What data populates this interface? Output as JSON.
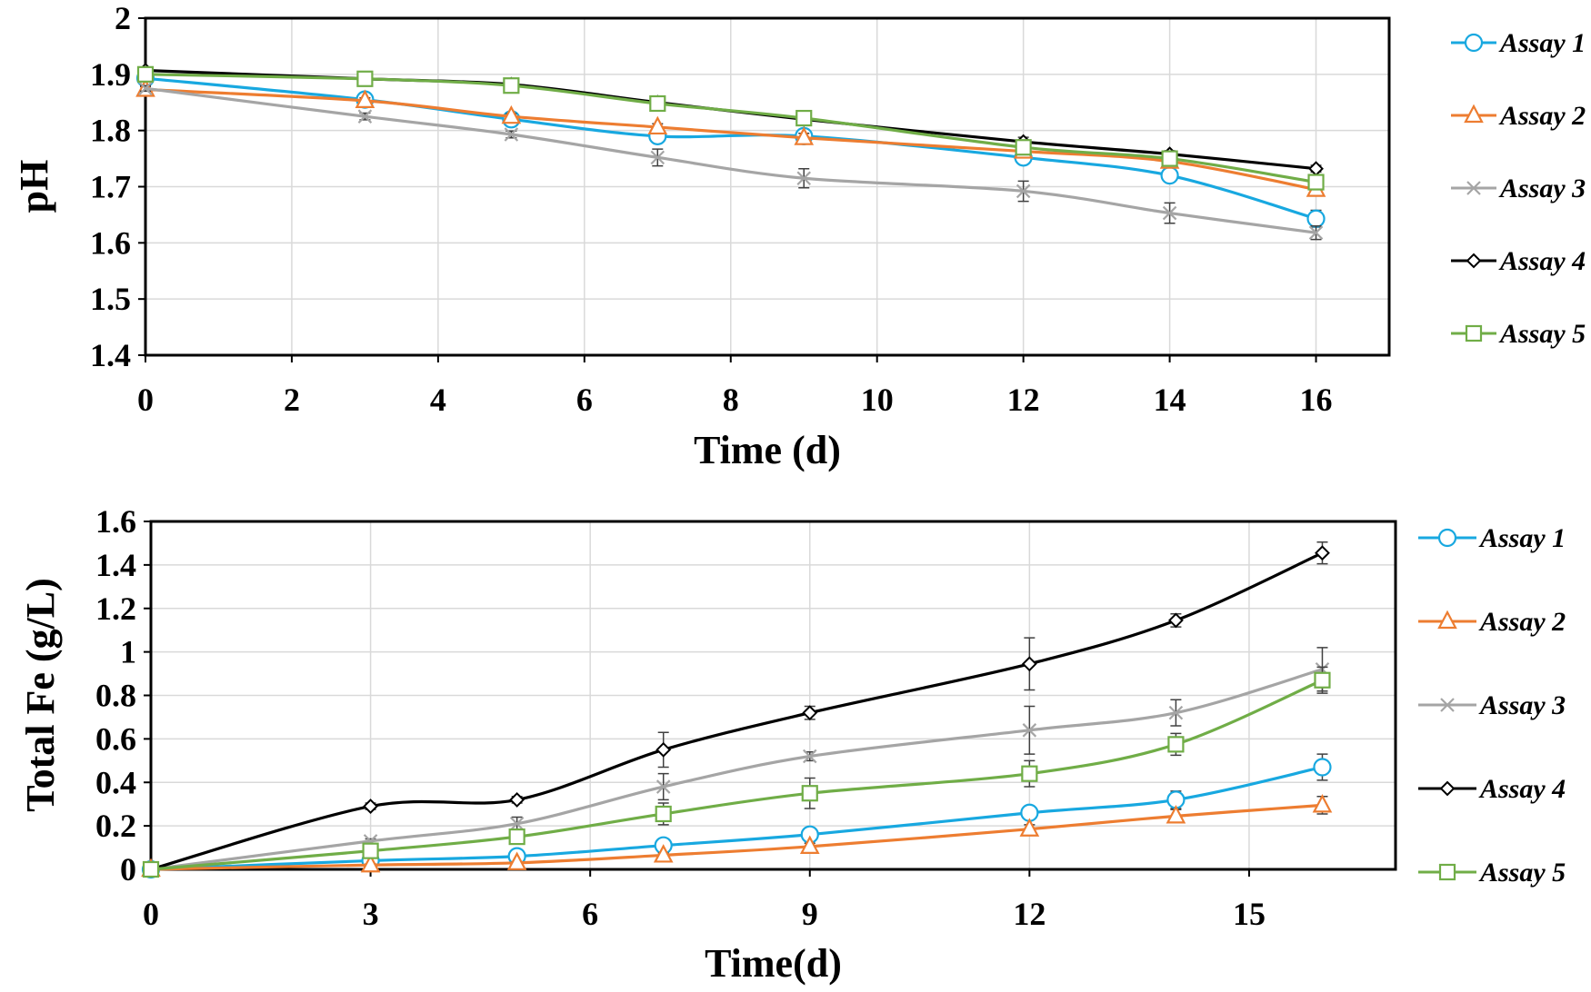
{
  "colors": {
    "assay1": "#18A8E0",
    "assay2": "#ED7D31",
    "assay3": "#A5A5A5",
    "assay4": "#000000",
    "assay5": "#70AD47",
    "grid": "#D9D9D9",
    "errorbar": "#404040"
  },
  "chart_data": [
    {
      "type": "line",
      "title": "",
      "xlabel": "Time (d)",
      "ylabel": "pH",
      "xlim": [
        0,
        17
      ],
      "ylim": [
        1.4,
        2
      ],
      "xticks": [
        0,
        2,
        4,
        6,
        8,
        10,
        12,
        14,
        16
      ],
      "yticks": [
        1.4,
        1.5,
        1.6,
        1.7,
        1.8,
        1.9,
        2
      ],
      "ytick_labels": [
        "1.4",
        "1.5",
        "1.6",
        "1.7",
        "1.8",
        "1.9",
        "2"
      ],
      "grid": true,
      "legend": "right",
      "x": [
        0,
        3,
        5,
        7,
        9,
        12,
        14,
        16
      ],
      "series": [
        {
          "name": "Assay 1",
          "marker": "circle",
          "color": "#18A8E0",
          "values": [
            1.893,
            1.855,
            1.82,
            1.79,
            1.79,
            1.752,
            1.72,
            1.643
          ],
          "errors": [
            0.005,
            0.005,
            0.006,
            0.008,
            0.008,
            0.008,
            0.01,
            0.015
          ]
        },
        {
          "name": "Assay 2",
          "marker": "triangle",
          "color": "#ED7D31",
          "values": [
            1.873,
            1.853,
            1.825,
            1.806,
            1.787,
            1.763,
            1.745,
            1.695
          ],
          "errors": [
            0.005,
            0.005,
            0.005,
            0.006,
            0.008,
            0.008,
            0.01,
            0.01
          ]
        },
        {
          "name": "Assay 3",
          "marker": "x",
          "color": "#A5A5A5",
          "values": [
            1.875,
            1.825,
            1.793,
            1.752,
            1.715,
            1.692,
            1.653,
            1.618
          ],
          "errors": [
            0.005,
            0.006,
            0.006,
            0.015,
            0.017,
            0.018,
            0.018,
            0.012
          ]
        },
        {
          "name": "Assay 4",
          "marker": "diamond",
          "color": "#000000",
          "values": [
            1.907,
            1.892,
            1.882,
            1.85,
            1.82,
            1.78,
            1.758,
            1.732
          ],
          "errors": [
            0.004,
            0.004,
            0.006,
            0.006,
            0.008,
            0.008,
            0.006,
            0.006
          ]
        },
        {
          "name": "Assay 5",
          "marker": "square",
          "color": "#70AD47",
          "values": [
            1.9,
            1.892,
            1.88,
            1.848,
            1.822,
            1.77,
            1.75,
            1.708
          ],
          "errors": [
            0.004,
            0.006,
            0.008,
            0.008,
            0.008,
            0.01,
            0.01,
            0.01
          ]
        }
      ]
    },
    {
      "type": "line",
      "title": "",
      "xlabel": "Time(d)",
      "ylabel": "Total Fe (g/L)",
      "xlim": [
        0,
        17
      ],
      "ylim": [
        0,
        1.6
      ],
      "xticks": [
        0,
        3,
        6,
        9,
        12,
        15
      ],
      "yticks": [
        0,
        0.2,
        0.4,
        0.6,
        0.8,
        1,
        1.2,
        1.4,
        1.6
      ],
      "ytick_labels": [
        "0",
        "0.2",
        "0.4",
        "0.6",
        "0.8",
        "1",
        "1.2",
        "1.4",
        "1.6"
      ],
      "grid": true,
      "legend": "right",
      "x": [
        0,
        3,
        5,
        7,
        9,
        12,
        14,
        16
      ],
      "series": [
        {
          "name": "Assay 1",
          "marker": "circle",
          "color": "#18A8E0",
          "values": [
            0,
            0.04,
            0.06,
            0.11,
            0.16,
            0.26,
            0.32,
            0.47
          ],
          "errors": [
            0,
            0.01,
            0.01,
            0.02,
            0.03,
            0.02,
            0.04,
            0.06
          ]
        },
        {
          "name": "Assay 2",
          "marker": "triangle",
          "color": "#ED7D31",
          "values": [
            0,
            0.02,
            0.03,
            0.065,
            0.105,
            0.185,
            0.245,
            0.295
          ],
          "errors": [
            0,
            0.005,
            0.005,
            0.01,
            0.015,
            0.02,
            0.03,
            0.04
          ]
        },
        {
          "name": "Assay 3",
          "marker": "x",
          "color": "#A5A5A5",
          "values": [
            0,
            0.13,
            0.21,
            0.38,
            0.52,
            0.64,
            0.72,
            0.92
          ],
          "errors": [
            0,
            0.01,
            0.03,
            0.06,
            0.02,
            0.11,
            0.06,
            0.1
          ]
        },
        {
          "name": "Assay 4",
          "marker": "diamond",
          "color": "#000000",
          "values": [
            0,
            0.29,
            0.32,
            0.55,
            0.72,
            0.945,
            1.145,
            1.455
          ],
          "errors": [
            0,
            0.015,
            0.015,
            0.08,
            0.03,
            0.12,
            0.03,
            0.05
          ]
        },
        {
          "name": "Assay 5",
          "marker": "square",
          "color": "#70AD47",
          "values": [
            0,
            0.085,
            0.15,
            0.255,
            0.35,
            0.44,
            0.575,
            0.87
          ],
          "errors": [
            0,
            0.01,
            0.03,
            0.05,
            0.07,
            0.06,
            0.05,
            0.06
          ]
        }
      ]
    }
  ]
}
